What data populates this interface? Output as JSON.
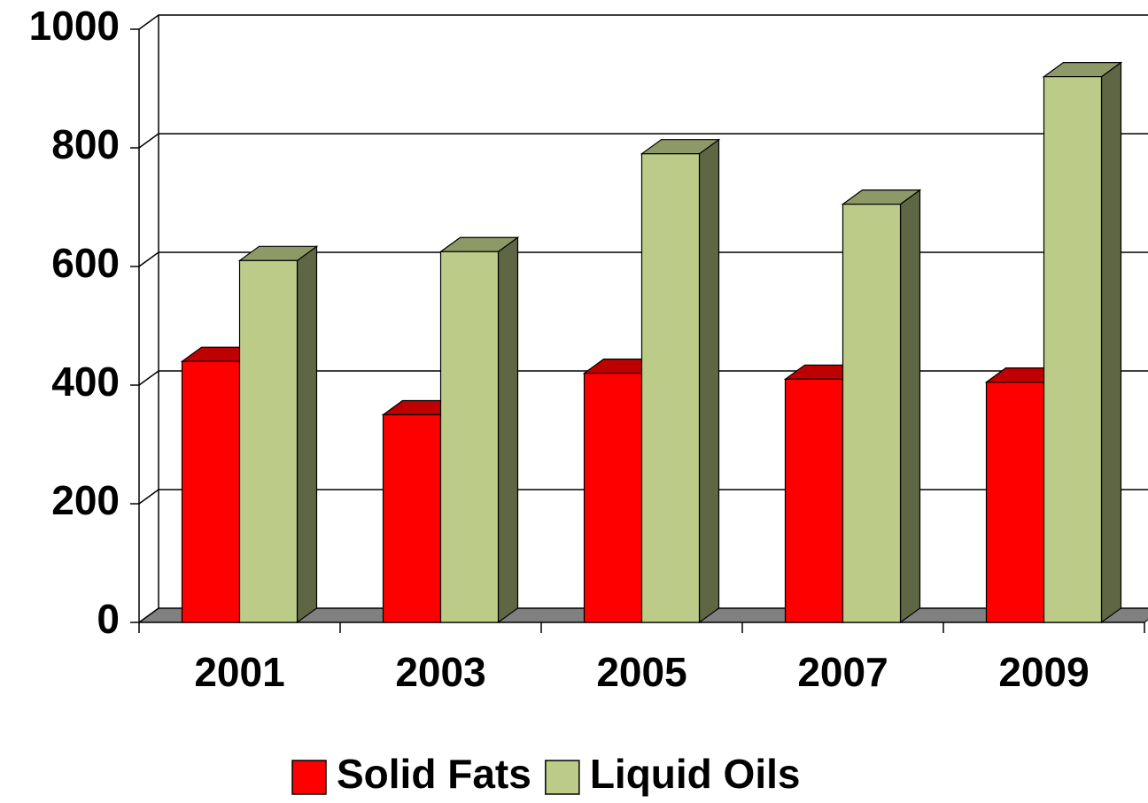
{
  "chart_data": {
    "type": "bar3d",
    "categories": [
      "2001",
      "2003",
      "2005",
      "2007",
      "2009"
    ],
    "series": [
      {
        "name": "Solid Fats",
        "color": "#ff0000",
        "values": [
          440,
          350,
          420,
          410,
          405
        ]
      },
      {
        "name": "Liquid Oils",
        "color": "#bccc88",
        "values": [
          610,
          625,
          790,
          705,
          920
        ]
      }
    ],
    "ylim": [
      0,
      1000
    ],
    "yticks": [
      0,
      200,
      400,
      600,
      800,
      1000
    ],
    "grid": true,
    "legend": "bottom"
  }
}
